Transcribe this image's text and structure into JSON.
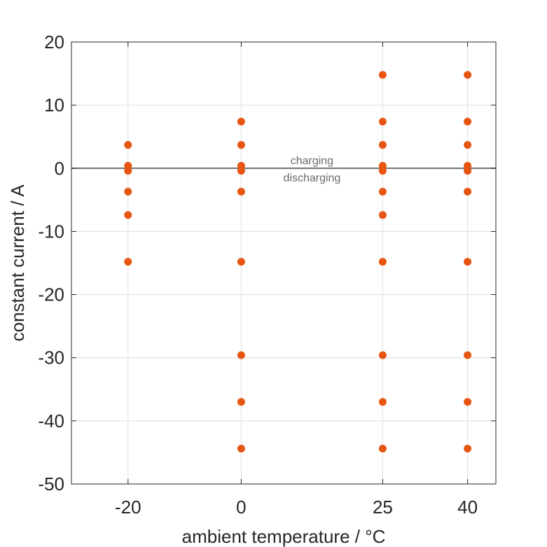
{
  "chart_data": {
    "type": "scatter",
    "xlabel": "ambient temperature / °C",
    "ylabel": "constant current / A",
    "xlim": [
      -30,
      45
    ],
    "ylim": [
      -50,
      20
    ],
    "xticks": [
      -20,
      0,
      25,
      40
    ],
    "yticks": [
      -50,
      -40,
      -30,
      -20,
      -10,
      0,
      10,
      20
    ],
    "grid": true,
    "marker_color": "#e65512",
    "zero_line": {
      "y": 0,
      "color": "#6b6b6b"
    },
    "annotations": [
      {
        "text": "charging",
        "x": 12.5,
        "y": 1.2
      },
      {
        "text": "discharging",
        "x": 12.5,
        "y": -1.5
      }
    ],
    "points": [
      {
        "x": -20,
        "y": 3.7
      },
      {
        "x": -20,
        "y": 0.4
      },
      {
        "x": -20,
        "y": -0.4
      },
      {
        "x": -20,
        "y": -3.7
      },
      {
        "x": -20,
        "y": -7.4
      },
      {
        "x": -20,
        "y": -14.8
      },
      {
        "x": 0,
        "y": 7.4
      },
      {
        "x": 0,
        "y": 3.7
      },
      {
        "x": 0,
        "y": 0.4
      },
      {
        "x": 0,
        "y": -0.4
      },
      {
        "x": 0,
        "y": -3.7
      },
      {
        "x": 0,
        "y": -14.8
      },
      {
        "x": 0,
        "y": -29.6
      },
      {
        "x": 0,
        "y": -37
      },
      {
        "x": 0,
        "y": -44.4
      },
      {
        "x": 25,
        "y": 14.8
      },
      {
        "x": 25,
        "y": 7.4
      },
      {
        "x": 25,
        "y": 3.7
      },
      {
        "x": 25,
        "y": 0.4
      },
      {
        "x": 25,
        "y": -0.4
      },
      {
        "x": 25,
        "y": -3.7
      },
      {
        "x": 25,
        "y": -7.4
      },
      {
        "x": 25,
        "y": -14.8
      },
      {
        "x": 25,
        "y": -29.6
      },
      {
        "x": 25,
        "y": -37
      },
      {
        "x": 25,
        "y": -44.4
      },
      {
        "x": 40,
        "y": 14.8
      },
      {
        "x": 40,
        "y": 7.4
      },
      {
        "x": 40,
        "y": 3.7
      },
      {
        "x": 40,
        "y": 0.4
      },
      {
        "x": 40,
        "y": -0.4
      },
      {
        "x": 40,
        "y": -3.7
      },
      {
        "x": 40,
        "y": -14.8
      },
      {
        "x": 40,
        "y": -29.6
      },
      {
        "x": 40,
        "y": -37
      },
      {
        "x": 40,
        "y": -44.4
      }
    ]
  }
}
